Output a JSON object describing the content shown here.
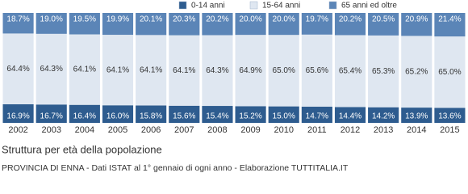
{
  "chart_data": {
    "type": "stacked_bar_100",
    "title": "Struttura per età della popolazione",
    "source": "PROVINCIA DI ENNA - Dati ISTAT al 1° gennaio di ogni anno - Elaborazione TUTTITALIA.IT",
    "categories": [
      "2002",
      "2003",
      "2004",
      "2005",
      "2006",
      "2007",
      "2008",
      "2009",
      "2010",
      "2011",
      "2012",
      "2013",
      "2014",
      "2015"
    ],
    "series": [
      {
        "name": "0-14 anni",
        "color": "#2e5c8f",
        "values": [
          16.9,
          16.7,
          16.4,
          16.0,
          15.8,
          15.6,
          15.4,
          15.2,
          15.0,
          14.7,
          14.4,
          14.2,
          13.9,
          13.6
        ],
        "value_labels": [
          "16.9%",
          "16.7%",
          "16.4%",
          "16.0%",
          "15.8%",
          "15.6%",
          "15.4%",
          "15.2%",
          "15.0%",
          "14.7%",
          "14.4%",
          "14.2%",
          "13.9%",
          "13.6%"
        ]
      },
      {
        "name": "15-64 anni",
        "color": "#dfe7f1",
        "values": [
          64.4,
          64.3,
          64.1,
          64.1,
          64.1,
          64.1,
          64.3,
          64.9,
          65.0,
          65.6,
          65.4,
          65.3,
          65.2,
          65.0
        ],
        "value_labels": [
          "64.4%",
          "64.3%",
          "64.1%",
          "64.1%",
          "64.1%",
          "64.1%",
          "64.3%",
          "64.9%",
          "65.0%",
          "65.6%",
          "65.4%",
          "65.3%",
          "65.2%",
          "65.0%"
        ]
      },
      {
        "name": "65 anni ed oltre",
        "color": "#5b85b7",
        "values": [
          18.7,
          19.0,
          19.5,
          19.9,
          20.1,
          20.3,
          20.2,
          20.0,
          20.0,
          19.7,
          20.2,
          20.5,
          20.9,
          21.4
        ],
        "value_labels": [
          "18.7%",
          "19.0%",
          "19.5%",
          "19.9%",
          "20.1%",
          "20.3%",
          "20.2%",
          "20.0%",
          "20.0%",
          "19.7%",
          "20.2%",
          "20.5%",
          "20.9%",
          "21.4%"
        ]
      }
    ]
  }
}
